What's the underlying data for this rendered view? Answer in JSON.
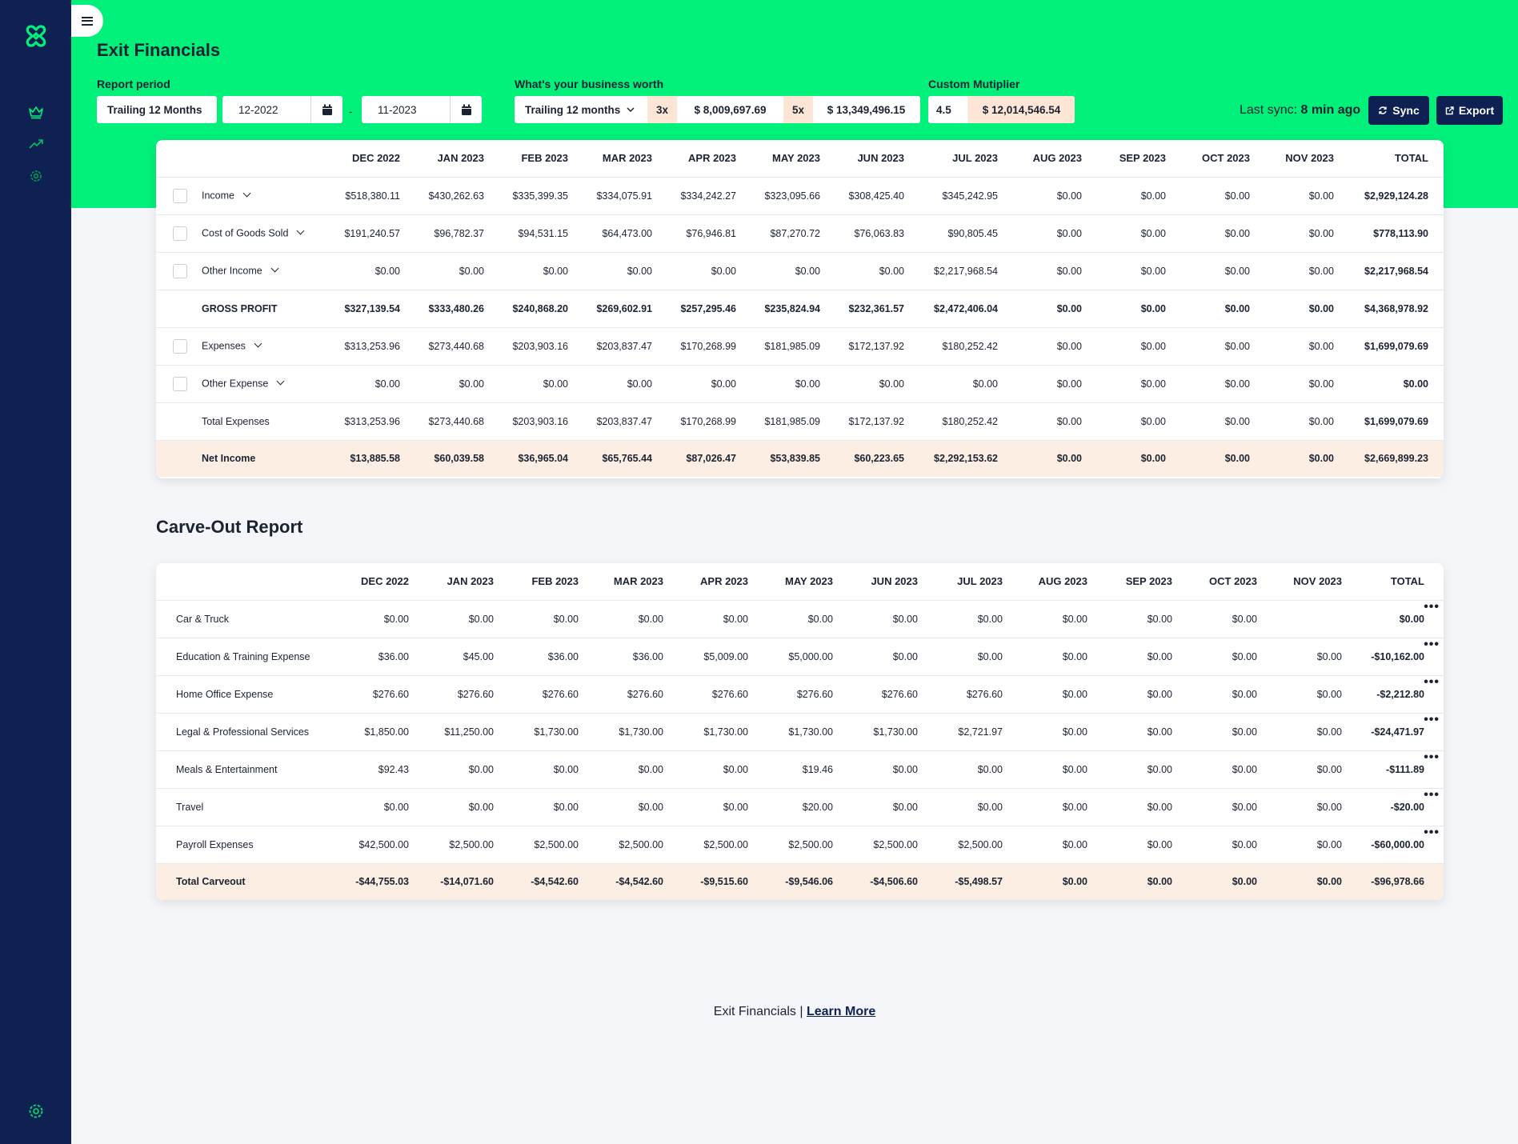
{
  "app": {
    "title": "Exit Financials",
    "menu_icon": "hamburger-icon",
    "logo_icon": "brand-logo-icon",
    "nav_icons": [
      "crown-icon",
      "trend-icon",
      "gear-icon"
    ],
    "accent_color": "#00f07a",
    "sidebar_color": "#0f2152"
  },
  "controls": {
    "report_period_label": "Report period",
    "period_value": "Trailing 12 Months",
    "date_from": "12-2022",
    "date_to": "11-2023",
    "date_separator": "-",
    "worth_label": "What's your business worth",
    "worth_period": "Trailing 12 months",
    "mult_low": "3x",
    "worth_low": "$ 8,009,697.69",
    "mult_high": "5x",
    "worth_high": "$ 13,349,496.15",
    "custom_label": "Custom Mutiplier",
    "custom_mult": "4.5",
    "custom_value": "$ 12,014,546.54",
    "last_sync_label": "Last sync:",
    "last_sync_value": "8 min ago",
    "sync_label": "Sync",
    "export_label": "Export"
  },
  "financials": {
    "columns": [
      "DEC 2022",
      "JAN 2023",
      "FEB 2023",
      "MAR 2023",
      "APR 2023",
      "MAY 2023",
      "JUN 2023",
      "JUL 2023",
      "AUG 2023",
      "SEP 2023",
      "OCT 2023",
      "NOV 2023",
      "TOTAL"
    ],
    "rows": [
      {
        "label": "Income",
        "checkbox": true,
        "expand": true,
        "bold": false,
        "values": [
          "$518,380.11",
          "$430,262.63",
          "$335,399.35",
          "$334,075.91",
          "$334,242.27",
          "$323,095.66",
          "$308,425.40",
          "$345,242.95",
          "$0.00",
          "$0.00",
          "$0.00",
          "$0.00",
          "$2,929,124.28"
        ]
      },
      {
        "label": "Cost of Goods Sold",
        "checkbox": true,
        "expand": true,
        "bold": false,
        "values": [
          "$191,240.57",
          "$96,782.37",
          "$94,531.15",
          "$64,473.00",
          "$76,946.81",
          "$87,270.72",
          "$76,063.83",
          "$90,805.45",
          "$0.00",
          "$0.00",
          "$0.00",
          "$0.00",
          "$778,113.90"
        ]
      },
      {
        "label": "Other Income",
        "checkbox": true,
        "expand": true,
        "bold": false,
        "values": [
          "$0.00",
          "$0.00",
          "$0.00",
          "$0.00",
          "$0.00",
          "$0.00",
          "$0.00",
          "$2,217,968.54",
          "$0.00",
          "$0.00",
          "$0.00",
          "$0.00",
          "$2,217,968.54"
        ]
      },
      {
        "label": "GROSS PROFIT",
        "checkbox": false,
        "expand": false,
        "bold": true,
        "values": [
          "$327,139.54",
          "$333,480.26",
          "$240,868.20",
          "$269,602.91",
          "$257,295.46",
          "$235,824.94",
          "$232,361.57",
          "$2,472,406.04",
          "$0.00",
          "$0.00",
          "$0.00",
          "$0.00",
          "$4,368,978.92"
        ]
      },
      {
        "label": "Expenses",
        "checkbox": true,
        "expand": true,
        "bold": false,
        "values": [
          "$313,253.96",
          "$273,440.68",
          "$203,903.16",
          "$203,837.47",
          "$170,268.99",
          "$181,985.09",
          "$172,137.92",
          "$180,252.42",
          "$0.00",
          "$0.00",
          "$0.00",
          "$0.00",
          "$1,699,079.69"
        ]
      },
      {
        "label": "Other Expense",
        "checkbox": true,
        "expand": true,
        "bold": false,
        "values": [
          "$0.00",
          "$0.00",
          "$0.00",
          "$0.00",
          "$0.00",
          "$0.00",
          "$0.00",
          "$0.00",
          "$0.00",
          "$0.00",
          "$0.00",
          "$0.00",
          "$0.00"
        ]
      },
      {
        "label": "Total Expenses",
        "checkbox": false,
        "expand": false,
        "bold": false,
        "values": [
          "$313,253.96",
          "$273,440.68",
          "$203,903.16",
          "$203,837.47",
          "$170,268.99",
          "$181,985.09",
          "$172,137.92",
          "$180,252.42",
          "$0.00",
          "$0.00",
          "$0.00",
          "$0.00",
          "$1,699,079.69"
        ]
      }
    ],
    "net_income": {
      "label": "Net Income",
      "values": [
        "$13,885.58",
        "$60,039.58",
        "$36,965.04",
        "$65,765.44",
        "$87,026.47",
        "$53,839.85",
        "$60,223.65",
        "$2,292,153.62",
        "$0.00",
        "$0.00",
        "$0.00",
        "$0.00",
        "$2,669,899.23"
      ]
    }
  },
  "carveout": {
    "title": "Carve-Out Report",
    "columns": [
      "DEC 2022",
      "JAN 2023",
      "FEB 2023",
      "MAR 2023",
      "APR 2023",
      "MAY 2023",
      "JUN 2023",
      "JUL 2023",
      "AUG 2023",
      "SEP 2023",
      "OCT 2023",
      "NOV 2023",
      "TOTAL"
    ],
    "more_label": "•••",
    "rows": [
      {
        "label": "Car & Truck",
        "values": [
          "$0.00",
          "$0.00",
          "$0.00",
          "$0.00",
          "$0.00",
          "$0.00",
          "$0.00",
          "$0.00",
          "$0.00",
          "$0.00",
          "$0.00",
          "",
          "$0.00"
        ]
      },
      {
        "label": "Education & Training Expense",
        "values": [
          "$36.00",
          "$45.00",
          "$36.00",
          "$36.00",
          "$5,009.00",
          "$5,000.00",
          "$0.00",
          "$0.00",
          "$0.00",
          "$0.00",
          "$0.00",
          "$0.00",
          "-$10,162.00"
        ]
      },
      {
        "label": "Home Office Expense",
        "values": [
          "$276.60",
          "$276.60",
          "$276.60",
          "$276.60",
          "$276.60",
          "$276.60",
          "$276.60",
          "$276.60",
          "$0.00",
          "$0.00",
          "$0.00",
          "$0.00",
          "-$2,212.80"
        ]
      },
      {
        "label": "Legal & Professional Services",
        "values": [
          "$1,850.00",
          "$11,250.00",
          "$1,730.00",
          "$1,730.00",
          "$1,730.00",
          "$1,730.00",
          "$1,730.00",
          "$2,721.97",
          "$0.00",
          "$0.00",
          "$0.00",
          "$0.00",
          "-$24,471.97"
        ]
      },
      {
        "label": "Meals & Entertainment",
        "values": [
          "$92.43",
          "$0.00",
          "$0.00",
          "$0.00",
          "$0.00",
          "$19.46",
          "$0.00",
          "$0.00",
          "$0.00",
          "$0.00",
          "$0.00",
          "$0.00",
          "-$111.89"
        ]
      },
      {
        "label": "Travel",
        "values": [
          "$0.00",
          "$0.00",
          "$0.00",
          "$0.00",
          "$0.00",
          "$20.00",
          "$0.00",
          "$0.00",
          "$0.00",
          "$0.00",
          "$0.00",
          "$0.00",
          "-$20.00"
        ]
      },
      {
        "label": "Payroll Expenses",
        "values": [
          "$42,500.00",
          "$2,500.00",
          "$2,500.00",
          "$2,500.00",
          "$2,500.00",
          "$2,500.00",
          "$2,500.00",
          "$2,500.00",
          "$0.00",
          "$0.00",
          "$0.00",
          "$0.00",
          "-$60,000.00"
        ]
      }
    ],
    "total": {
      "label": "Total Carveout",
      "values": [
        "-$44,755.03",
        "-$14,071.60",
        "-$4,542.60",
        "-$4,542.60",
        "-$9,515.60",
        "-$9,546.06",
        "-$4,506.60",
        "-$5,498.57",
        "$0.00",
        "$0.00",
        "$0.00",
        "$0.00",
        "-$96,978.66"
      ]
    }
  },
  "footer": {
    "text": "Exit Financials |",
    "link": "Learn More"
  }
}
